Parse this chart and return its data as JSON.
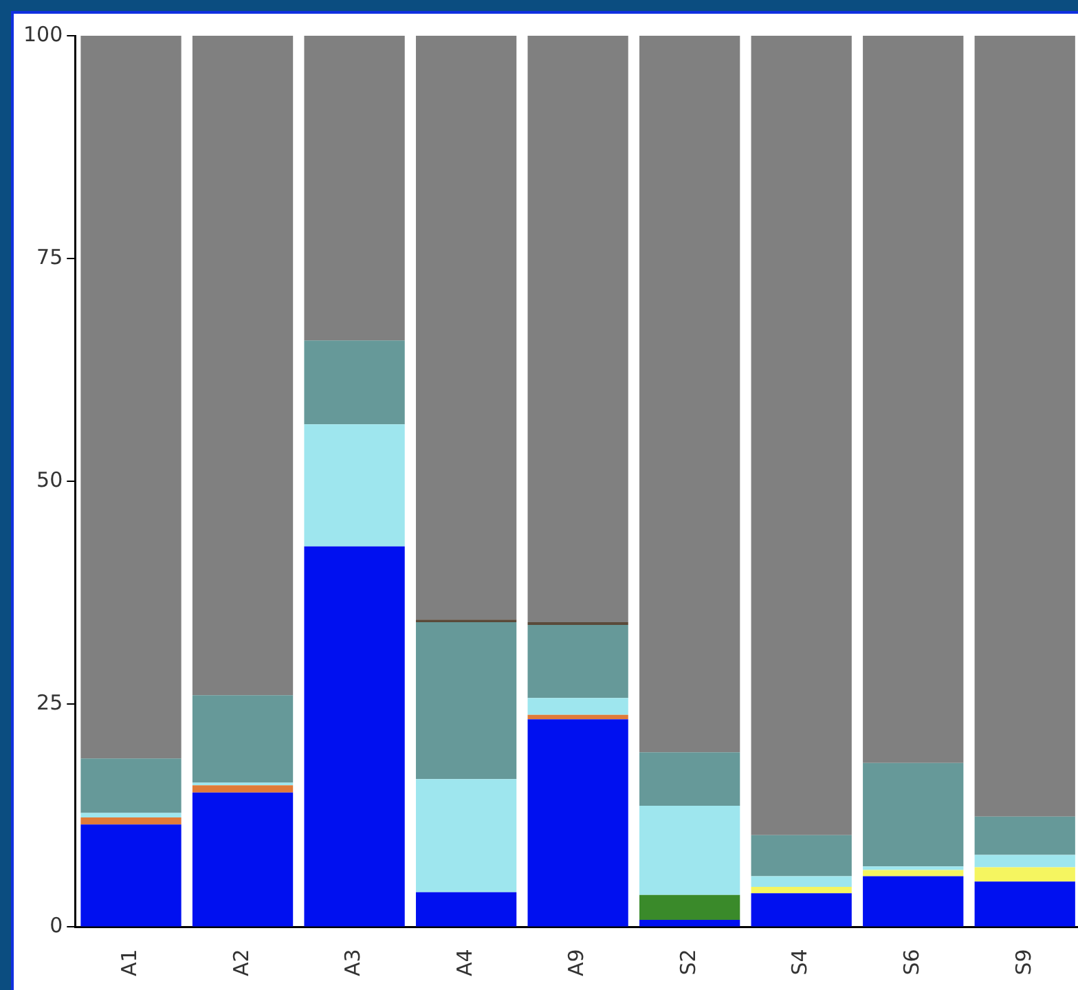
{
  "chart_data": {
    "type": "bar",
    "stacked": true,
    "categories": [
      "A1",
      "A2",
      "A3",
      "A4",
      "A9",
      "S2",
      "S4",
      "S6",
      "S9"
    ],
    "ylim": [
      0,
      100
    ],
    "yticks": [
      0,
      25,
      50,
      75,
      100
    ],
    "grid": false,
    "legend": false,
    "series": [
      {
        "color": "#0010f0",
        "values": [
          11.5,
          15.1,
          42.7,
          3.9,
          23.3,
          0.8,
          3.8,
          5.7,
          5.1
        ]
      },
      {
        "color": "#3a8a2a",
        "values": [
          null,
          null,
          null,
          null,
          null,
          2.8,
          null,
          null,
          null
        ]
      },
      {
        "color": "#f5f560",
        "values": [
          null,
          null,
          null,
          null,
          null,
          null,
          0.7,
          0.7,
          1.6
        ]
      },
      {
        "color": "#e07b39",
        "values": [
          0.8,
          0.8,
          null,
          null,
          0.5,
          null,
          null,
          null,
          null
        ]
      },
      {
        "color": "#9ee6ee",
        "values": [
          0.5,
          0.3,
          13.7,
          12.7,
          1.9,
          10.0,
          1.2,
          0.4,
          1.4
        ]
      },
      {
        "color": "#669999",
        "values": [
          6.1,
          9.8,
          9.4,
          17.6,
          8.2,
          6.0,
          4.6,
          11.6,
          4.3
        ]
      },
      {
        "color": "#5a4a3a",
        "values": [
          null,
          null,
          null,
          0.3,
          0.3,
          null,
          null,
          null,
          null
        ]
      },
      {
        "color": "#808080",
        "values": [
          81.1,
          74.0,
          34.2,
          65.5,
          65.8,
          80.4,
          89.7,
          81.6,
          87.6
        ]
      }
    ]
  }
}
